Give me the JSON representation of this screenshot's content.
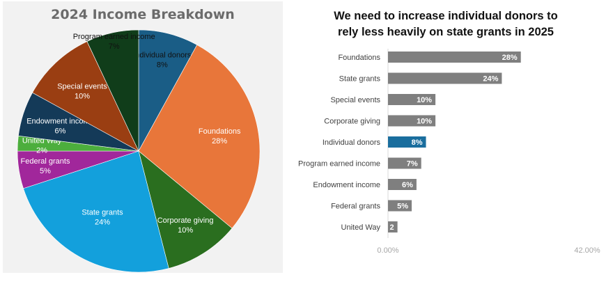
{
  "chart_data": [
    {
      "type": "pie",
      "title": "2024 Income Breakdown",
      "slices": [
        {
          "label": "Individual donors",
          "value": 8,
          "value_label": "8%",
          "color": "#1a5d86",
          "label_color": "#111111"
        },
        {
          "label": "Foundations",
          "value": 28,
          "value_label": "28%",
          "color": "#e8763a",
          "label_color": "#ffffff"
        },
        {
          "label": "Corporate giving",
          "value": 10,
          "value_label": "10%",
          "color": "#2a6e1f",
          "label_color": "#ffffff"
        },
        {
          "label": "State grants",
          "value": 24,
          "value_label": "24%",
          "color": "#13a0dc",
          "label_color": "#ffffff"
        },
        {
          "label": "Federal grants",
          "value": 5,
          "value_label": "5%",
          "color": "#a1279b",
          "label_color": "#ffffff"
        },
        {
          "label": "United Way",
          "value": 2,
          "value_label": "2%",
          "color": "#4cae3d",
          "label_color": "#ffffff"
        },
        {
          "label": "Endowment income",
          "value": 6,
          "value_label": "6%",
          "color": "#143a58",
          "label_color": "#ffffff"
        },
        {
          "label": "Special events",
          "value": 10,
          "value_label": "10%",
          "color": "#9a3e12",
          "label_color": "#ffffff"
        },
        {
          "label": "Program earned income",
          "value": 7,
          "value_label": "7%",
          "color": "#103d1a",
          "label_color": "#111111"
        }
      ]
    },
    {
      "type": "bar",
      "orientation": "horizontal",
      "title": "We need to increase individual donors to rely less heavily on state grants in 2025",
      "title_lines": [
        "We need to increase individual donors to",
        "rely less heavily on state grants in 2025"
      ],
      "categories": [
        "Foundations",
        "State grants",
        "Special events",
        "Corporate giving",
        "Individual donors",
        "Program earned income",
        "Endowment income",
        "Federal grants",
        "United Way"
      ],
      "values": [
        28,
        24,
        10,
        10,
        8,
        7,
        6,
        5,
        2
      ],
      "value_labels": [
        "28%",
        "24%",
        "10%",
        "10%",
        "8%",
        "7%",
        "6%",
        "5%",
        "2"
      ],
      "highlight": "Individual donors",
      "bar_color": "#7f7f7f",
      "highlight_color": "#1a6e9e",
      "xlim": [
        0,
        42
      ],
      "xtick_labels": [
        "0.00%",
        "42.00%"
      ],
      "grid": false
    }
  ]
}
